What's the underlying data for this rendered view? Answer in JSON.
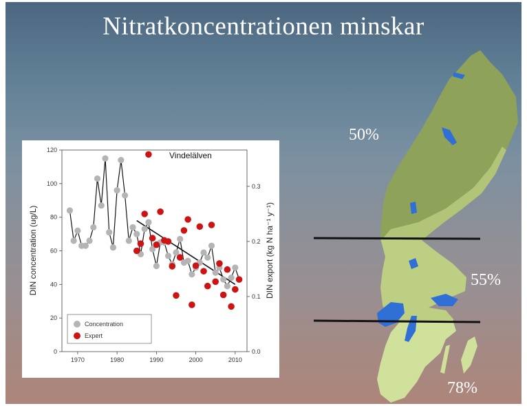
{
  "slide": {
    "title": "Nitratkoncentrationen minskar",
    "regions": [
      {
        "label": "50%"
      },
      {
        "label": "55%"
      },
      {
        "label": "78%"
      }
    ]
  },
  "colors": {
    "concentration": "#b4b4b4",
    "expert": "#cc1414",
    "trend": "#111111",
    "map_north": "#8fa25a",
    "map_middle": "#bccf82",
    "map_south": "#cfe19a",
    "lakes": "#2f6fd6"
  },
  "chart_data": {
    "type": "scatter",
    "title": "Vindelälven",
    "xlabel": "",
    "ylabel": "DIN concentration (ug/L)",
    "y2label": "DIN export (kg N ha⁻¹ y⁻¹)",
    "xlim": [
      1966,
      2013
    ],
    "ylim": [
      0,
      120
    ],
    "y2lim": [
      0,
      0.366
    ],
    "xticks": [
      "1970",
      "1980",
      "1990",
      "2000",
      "2010"
    ],
    "yticks": [
      "0",
      "20",
      "40",
      "60",
      "80",
      "100",
      "120"
    ],
    "y2ticks": [
      "0.0",
      "0.1",
      "0.2",
      "0.3"
    ],
    "legend": {
      "position": "bottom-left",
      "entries": [
        "Concentration",
        "Expert"
      ]
    },
    "series": [
      {
        "name": "Concentration",
        "axis": "left",
        "style": "line+markers",
        "x": [
          1968,
          1969,
          1970,
          1971,
          1972,
          1973,
          1974,
          1975,
          1976,
          1977,
          1978,
          1979,
          1980,
          1981,
          1982,
          1983,
          1984,
          1985,
          1986,
          1987,
          1988,
          1989,
          1990,
          1991,
          1992,
          1993,
          1994,
          1995,
          1996,
          1997,
          1998,
          1999,
          2000,
          2001,
          2002,
          2003,
          2004,
          2005,
          2006,
          2007,
          2008,
          2009,
          2010,
          2011
        ],
        "y": [
          84,
          66,
          72,
          63,
          63,
          66,
          74,
          103,
          87,
          115,
          71,
          62,
          96,
          114,
          93,
          66,
          74,
          70,
          58,
          73,
          77,
          61,
          51,
          65,
          65,
          57,
          52,
          59,
          67,
          53,
          54,
          46,
          50,
          53,
          59,
          56,
          63,
          47,
          50,
          43,
          39,
          44,
          50,
          43
        ]
      },
      {
        "name": "Expert",
        "axis": "right",
        "style": "markers",
        "x": [
          1985,
          1986,
          1987,
          1988,
          1989,
          1990,
          1991,
          1992,
          1993,
          1994,
          1995,
          1996,
          1997,
          1998,
          1999,
          2000,
          2001,
          2002,
          2003,
          2004,
          2005,
          2006,
          2007,
          2008,
          2009,
          2010,
          2011
        ],
        "y": [
          0.183,
          0.196,
          0.25,
          0.358,
          0.206,
          0.194,
          0.254,
          0.202,
          0.2,
          0.155,
          0.102,
          0.171,
          0.22,
          0.24,
          0.085,
          0.156,
          0.227,
          0.146,
          0.119,
          0.23,
          0.127,
          0.16,
          0.103,
          0.149,
          0.082,
          0.113,
          0.131
        ]
      },
      {
        "name": "",
        "axis": "left",
        "style": "trend-line",
        "x": [
          1985,
          2010
        ],
        "y": [
          78,
          40
        ]
      }
    ]
  }
}
